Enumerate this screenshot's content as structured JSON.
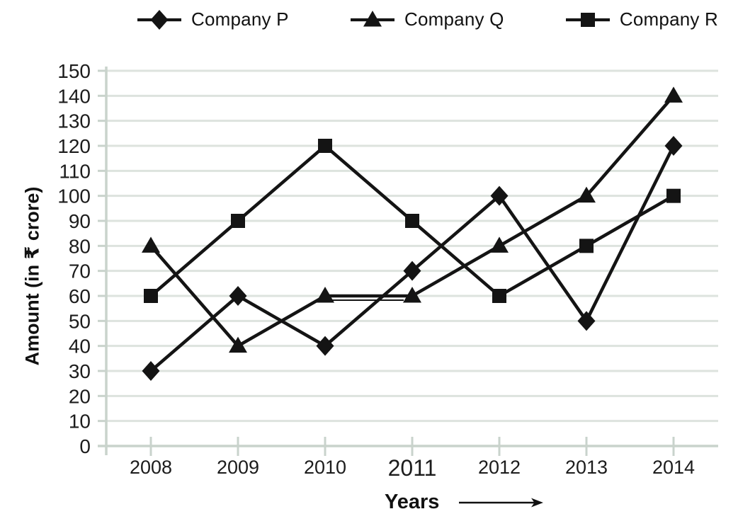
{
  "legend": {
    "items": [
      {
        "label": "Company P",
        "marker": "diamond"
      },
      {
        "label": "Company Q",
        "marker": "triangle"
      },
      {
        "label": "Company R",
        "marker": "square"
      }
    ]
  },
  "chart_data": {
    "type": "line",
    "categories": [
      "2008",
      "2009",
      "2010",
      "2011",
      "2012",
      "2013",
      "2014"
    ],
    "series": [
      {
        "name": "Company P",
        "marker": "diamond",
        "values": [
          30,
          60,
          40,
          70,
          100,
          50,
          120
        ]
      },
      {
        "name": "Company Q",
        "marker": "triangle",
        "values": [
          80,
          40,
          60,
          60,
          80,
          100,
          140
        ]
      },
      {
        "name": "Company R",
        "marker": "square",
        "values": [
          60,
          90,
          120,
          90,
          60,
          80,
          100
        ]
      }
    ],
    "title": "",
    "xlabel": "Years",
    "ylabel": "Amount (in ₹ crore)",
    "ylim": [
      0,
      150
    ],
    "ytick_step": 10,
    "yticks": [
      0,
      10,
      20,
      30,
      40,
      50,
      60,
      70,
      80,
      90,
      100,
      110,
      120,
      130,
      140,
      150
    ],
    "grid": "horizontal",
    "legend_position": "top",
    "xtick_emphasis": "2011"
  },
  "colors": {
    "series": "#141414",
    "grid": "#dde3de",
    "axis": "#c9d3cc",
    "text": "#1c1c1c"
  }
}
